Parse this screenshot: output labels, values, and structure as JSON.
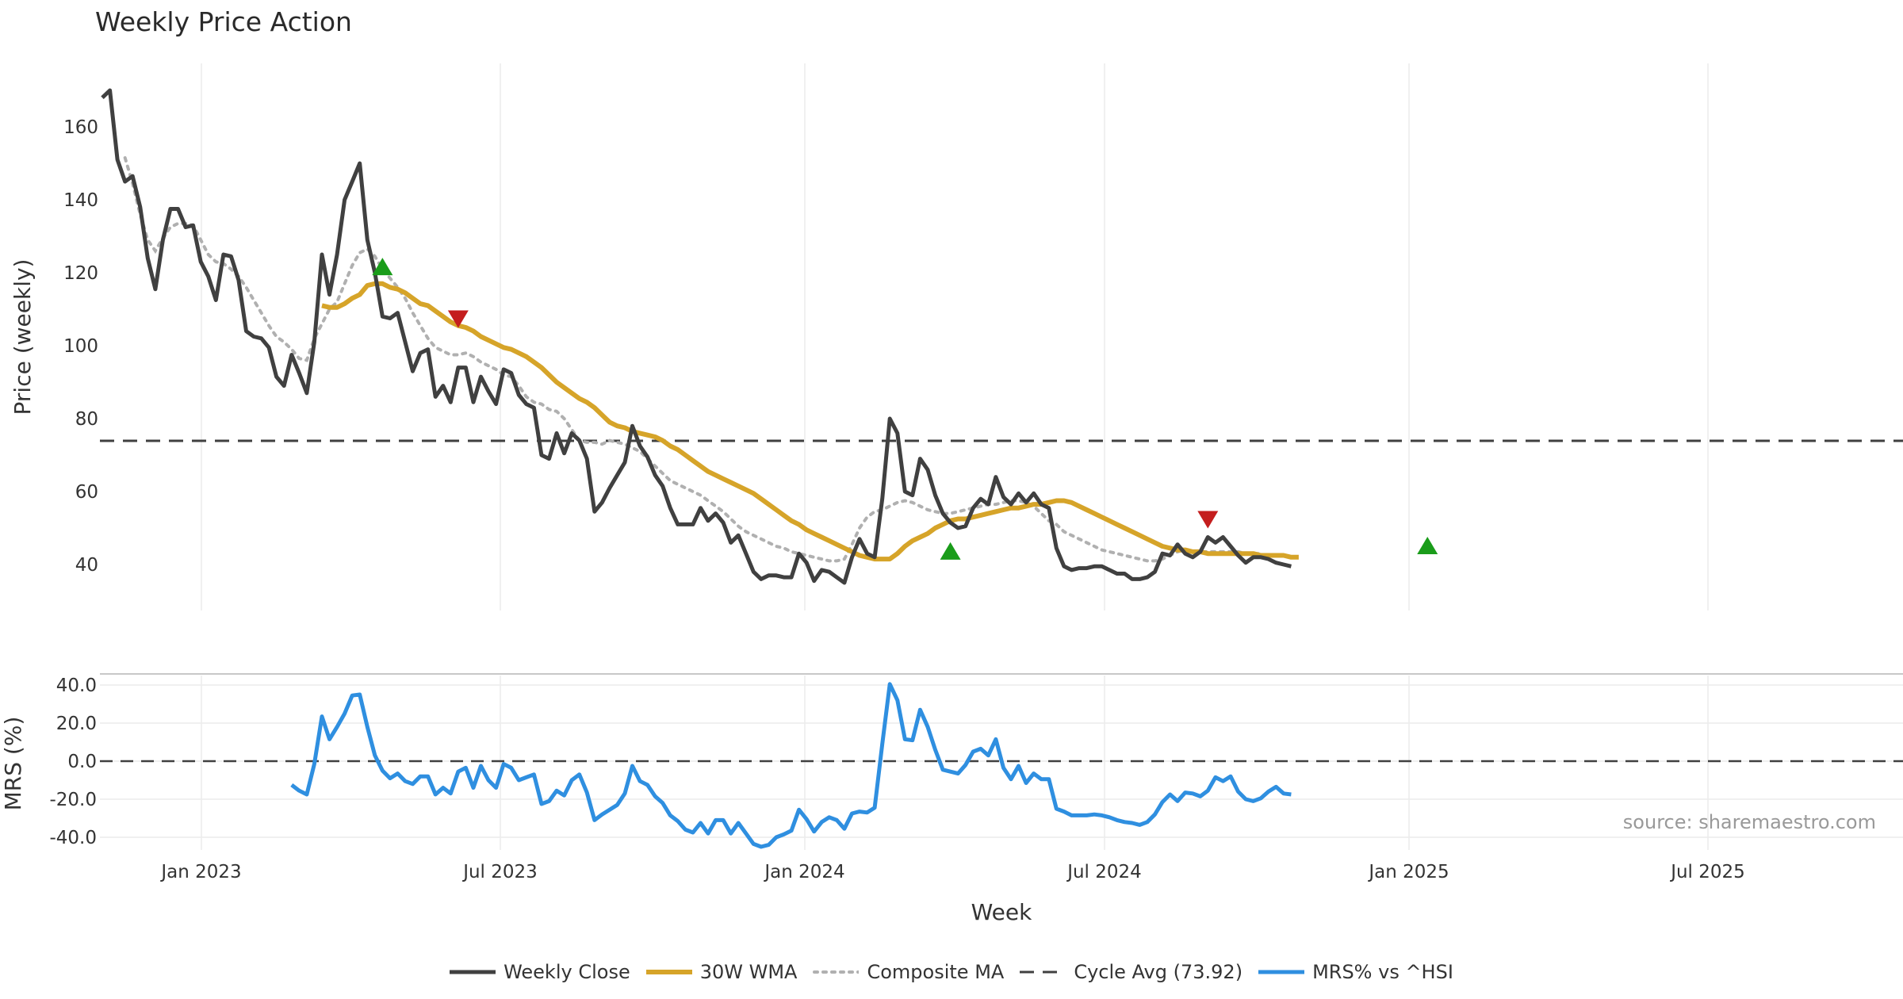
{
  "chart_data": {
    "type": "line",
    "title": "Weekly Price Action",
    "xlabel": "Week",
    "source": "source: sharemaestro.com",
    "x_ticks": [
      "Jan 2023",
      "Jul 2023",
      "Jan 2024",
      "Jul 2024",
      "Jan 2025",
      "Jul 2025"
    ],
    "price_panel": {
      "ylabel": "Price (weekly)",
      "ylim": [
        28,
        177
      ],
      "y_ticks": [
        40,
        60,
        80,
        100,
        120,
        140,
        160
      ],
      "y_tick_labels": [
        "40",
        "60",
        "80",
        "100",
        "120",
        "140",
        "160"
      ],
      "cycle_avg": 73.92,
      "weekly_close": [
        168,
        170,
        151,
        145,
        146.5,
        138,
        124,
        115.5,
        129,
        137.5,
        137.5,
        132.5,
        133,
        123,
        119,
        112.5,
        125,
        124.5,
        118,
        104,
        102.5,
        102,
        99.5,
        91.5,
        89,
        97.5,
        92.5,
        87,
        101,
        125,
        114,
        125,
        140,
        145,
        150,
        129,
        120,
        108,
        107.5,
        109,
        101,
        93,
        98,
        99,
        86,
        89,
        84.5,
        94,
        94,
        84.5,
        91.5,
        87.5,
        84,
        93.5,
        92.5,
        86.5,
        84,
        83,
        70,
        69,
        76,
        70.5,
        76,
        74,
        69,
        54.5,
        57,
        61,
        64.5,
        68,
        78,
        72.5,
        69.5,
        64.5,
        61.5,
        55.5,
        51,
        51,
        51,
        55.5,
        52,
        54,
        51.5,
        46,
        48,
        43,
        38,
        36,
        37,
        37,
        36.5,
        36.5,
        43,
        40.5,
        35.5,
        38.5,
        38,
        36.5,
        35,
        42,
        47,
        43,
        42,
        58,
        80,
        76,
        60,
        59,
        69,
        66,
        59,
        54,
        51.5,
        50,
        50.5,
        55.5,
        58,
        56.5,
        64,
        58.5,
        56.5,
        59.5,
        57,
        59.5,
        56.5,
        55.5,
        44.5,
        39.5,
        38.5,
        39,
        39,
        39.5,
        39.5,
        38.5,
        37.5,
        37.5,
        36,
        36,
        36.5,
        38,
        43,
        42.5,
        45.5,
        43,
        42,
        43.5,
        47.5,
        46,
        47.5,
        45,
        42.5,
        40.5,
        42,
        42,
        41.5,
        40.5,
        40,
        39.5
      ],
      "wma_30w": [
        111,
        110.5,
        110.5,
        111.5,
        113,
        114,
        116.5,
        117,
        117,
        116,
        115.5,
        114.5,
        113,
        111.5,
        111,
        109.5,
        108,
        106.5,
        105.5,
        105,
        104,
        102.5,
        101.5,
        100.5,
        99.5,
        99,
        98,
        97,
        95.5,
        94,
        92,
        90,
        88.5,
        87,
        85.5,
        84.5,
        83,
        81,
        79,
        78,
        77.5,
        76.5,
        76,
        75.5,
        75,
        74,
        72.5,
        71.5,
        70,
        68.5,
        67,
        65.5,
        64.5,
        63.5,
        62.5,
        61.5,
        60.5,
        59.5,
        58,
        56.5,
        55,
        53.5,
        52,
        51,
        49.5,
        48.5,
        47.5,
        46.5,
        45.5,
        44.5,
        43.5,
        42.5,
        42,
        41.5,
        41.5,
        41.5,
        43,
        45,
        46.5,
        47.5,
        48.5,
        50,
        51,
        52,
        52.5,
        52.5,
        53,
        53.5,
        54,
        54.5,
        55,
        55.5,
        55.5,
        56,
        56.5,
        56.5,
        57,
        57.5,
        57.5,
        57,
        56,
        55,
        54,
        53,
        52,
        51,
        50,
        49,
        48,
        47,
        46,
        45,
        44.5,
        44,
        44,
        43.5,
        43.5,
        43,
        43,
        43,
        43,
        43,
        43,
        43,
        42.5,
        42.5,
        42.5,
        42.5,
        42,
        42
      ],
      "composite_ma": [
        151.5,
        144.5,
        136,
        129,
        126,
        129.5,
        132.5,
        133.5,
        133.5,
        133,
        129,
        125,
        123,
        122.5,
        121,
        119,
        116,
        112.5,
        109,
        105.5,
        102.5,
        101,
        99,
        96.5,
        96,
        102,
        106,
        110,
        112,
        117,
        122,
        125.5,
        126.5,
        124.5,
        121,
        118.5,
        116,
        113,
        109,
        105.5,
        102,
        99.5,
        98.5,
        97.5,
        97.5,
        98,
        97,
        95.5,
        94.5,
        93.5,
        92,
        91.5,
        89,
        86,
        84.5,
        84,
        82.5,
        82,
        80,
        77,
        74,
        73.5,
        73.5,
        73,
        74,
        73.5,
        73,
        72,
        71,
        69,
        67,
        65,
        63,
        62,
        61,
        60,
        59,
        57.5,
        56,
        54.5,
        52.5,
        50.5,
        49,
        48,
        47,
        46,
        45,
        44.5,
        43.5,
        43,
        42.5,
        42,
        41.5,
        41,
        41,
        41.5,
        45.5,
        50,
        53,
        54.5,
        55,
        56,
        57,
        57.5,
        57,
        56,
        55,
        54.5,
        54,
        54,
        54.5,
        55,
        55.5,
        56,
        56.5,
        56.5,
        57,
        57.5,
        57.5,
        57,
        56,
        54,
        52,
        51,
        49,
        48,
        47,
        46,
        45,
        44,
        43.5,
        43,
        42.5,
        42,
        41.5,
        41,
        41,
        41.5,
        42.5,
        43.5,
        44,
        43.5,
        43.5,
        43.5,
        43.5,
        43.5,
        43.5,
        43.5,
        43,
        43,
        43
      ],
      "buy_signals": [
        {
          "week": 37,
          "price": 121.5
        },
        {
          "week": 112,
          "price": 43.5
        },
        {
          "week": 175,
          "price": 45
        }
      ],
      "sell_signals": [
        {
          "week": 47,
          "price": 107.5
        },
        {
          "week": 146,
          "price": 52.5
        }
      ]
    },
    "mrs_panel": {
      "ylabel": "MRS (%)",
      "ylim": [
        -45,
        44
      ],
      "y_ticks": [
        -40,
        -20,
        0,
        20,
        40
      ],
      "y_tick_labels": [
        "-40.0",
        "-20.0",
        "0.0",
        "20.0",
        "40.0"
      ],
      "mrs_vs_hsi": [
        -12.5,
        -15.5,
        -17.5,
        -1.5,
        23.5,
        11.5,
        18,
        25,
        34.5,
        35,
        18,
        3,
        -5,
        -9,
        -6.5,
        -10.5,
        -12,
        -8,
        -8,
        -17.5,
        -14,
        -17,
        -5.5,
        -3.5,
        -14,
        -2.5,
        -10,
        -14,
        -1.5,
        -3.5,
        -10,
        -8.5,
        -7,
        -22.5,
        -21,
        -15.5,
        -18,
        -10,
        -7,
        -16.5,
        -31,
        -28,
        -25.5,
        -23,
        -17,
        -2.5,
        -10.5,
        -12.5,
        -18.5,
        -22,
        -28.5,
        -31.5,
        -36,
        -37.5,
        -32.5,
        -38,
        -31,
        -31,
        -38,
        -32.5,
        -38,
        -43.5,
        -45,
        -44,
        -40,
        -38.5,
        -36.5,
        -25.5,
        -30.5,
        -37,
        -32,
        -29.5,
        -31,
        -35.5,
        -27.5,
        -26.5,
        -27,
        -24.5,
        9,
        40.5,
        32,
        11.5,
        11,
        27,
        18,
        6,
        -4.5,
        -5.5,
        -6.5,
        -2,
        5,
        6.5,
        3,
        11.5,
        -3.5,
        -9.5,
        -2.5,
        -11.5,
        -6.5,
        -9.5,
        -9.5,
        -25,
        -26.5,
        -28.5,
        -28.5,
        -28.5,
        -28,
        -28.5,
        -29.5,
        -31,
        -32,
        -32.5,
        -33.5,
        -32,
        -28,
        -21.5,
        -17.5,
        -21,
        -16.5,
        -17,
        -18.5,
        -15.5,
        -8.5,
        -10.5,
        -8,
        -16,
        -20,
        -21,
        -19.5,
        -16,
        -13.5,
        -17,
        -17.5
      ]
    },
    "series": [
      {
        "name": "Weekly Close",
        "color": "#404040",
        "style": "solid",
        "start_week": 0
      },
      {
        "name": "30W WMA",
        "color": "#d6a429",
        "style": "solid",
        "start_week": 29
      },
      {
        "name": "Composite MA",
        "color": "#b0b0b0",
        "style": "dotted",
        "start_week": 3
      },
      {
        "name": "Cycle Avg (73.92)",
        "color": "#404040",
        "style": "dashed"
      },
      {
        "name": "MRS% vs ^HSI",
        "color": "#2f8fe0",
        "style": "solid",
        "start_week": 25
      }
    ],
    "signal_colors": {
      "buy": "#1a9c1a",
      "sell": "#c41e1e"
    }
  }
}
